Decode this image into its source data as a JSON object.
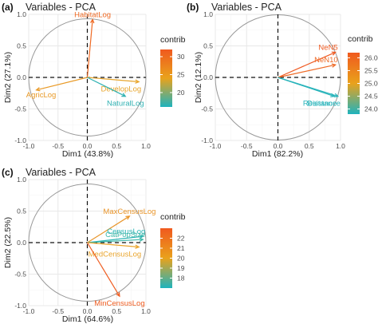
{
  "figure": {
    "colors": {
      "axis_dash": "#111111",
      "circle": "#999999",
      "grid_major": "#e8e8e8",
      "grid_minor": "#f4f4f4",
      "tick_text": "#4d4d4d",
      "text": "#222222"
    }
  },
  "chart_data": [
    {
      "type": "scatter",
      "panel_label": "(a)",
      "title": "Variables - PCA",
      "xlabel": "Dim1 (43.8%)",
      "ylabel": "Dim2 (27.1%)",
      "xlim": [
        -1.0,
        1.0
      ],
      "ylim": [
        -1.0,
        1.0
      ],
      "x_ticks": [
        "-1.0",
        "-0.5",
        "0.0",
        "0.5",
        "1.0"
      ],
      "y_ticks": [
        "-1.0",
        "-0.5",
        "0.0",
        "0.5",
        "1.0"
      ],
      "grid": true,
      "legend": {
        "title": "contrib",
        "min": 16,
        "max": 32,
        "ticks": [
          "30",
          "25",
          "20"
        ],
        "tick_values": [
          30,
          25,
          20
        ],
        "colors": [
          "#1fb3bd",
          "#e9a21c",
          "#f0591e"
        ]
      },
      "series": [
        {
          "name": "HabitatLog",
          "x": 0.09,
          "y": 0.92,
          "color": "#ef6a24"
        },
        {
          "name": "AgricLog",
          "x": -0.87,
          "y": -0.2,
          "color": "#e99a27"
        },
        {
          "name": "DevelopLog",
          "x": 0.88,
          "y": -0.07,
          "color": "#e8a52c"
        },
        {
          "name": "NaturalLog",
          "x": 0.65,
          "y": -0.3,
          "color": "#2fb1b2"
        }
      ]
    },
    {
      "type": "scatter",
      "panel_label": "(b)",
      "title": "Variables - PCA",
      "xlabel": "Dim1 (82.2%)",
      "ylabel": "Dim2 (12.1%)",
      "xlim": [
        -1.0,
        1.0
      ],
      "ylim": [
        -1.0,
        1.0
      ],
      "x_ticks": [
        "-1.0",
        "-0.5",
        "0.0",
        "0.5",
        "1.0"
      ],
      "y_ticks": [
        "-1.0",
        "-0.5",
        "0.0",
        "0.5",
        "1.0"
      ],
      "grid": true,
      "legend": {
        "title": "contrib",
        "min": 23.8,
        "max": 26.2,
        "ticks": [
          "26.00",
          "25.50",
          "25.00",
          "24.50",
          "24.00"
        ],
        "tick_values": [
          26.0,
          25.5,
          25.0,
          24.5,
          24.0
        ],
        "colors": [
          "#1fb3bd",
          "#e9a21c",
          "#f0591e"
        ]
      },
      "series": [
        {
          "name": "NeN5",
          "x": 0.92,
          "y": 0.4,
          "color": "#ef5a22"
        },
        {
          "name": "NeN10",
          "x": 0.92,
          "y": 0.2,
          "color": "#ee6a26"
        },
        {
          "name": "Distance",
          "x": 0.9,
          "y": -0.3,
          "color": "#27b3ba"
        },
        {
          "name": "Resistance",
          "x": 0.96,
          "y": -0.3,
          "color": "#27b3ba"
        }
      ]
    },
    {
      "type": "scatter",
      "panel_label": "(c)",
      "title": "Variables - PCA",
      "xlabel": "Dim1 (64.6%)",
      "ylabel": "Dim2 (22.5%)",
      "xlim": [
        -1.0,
        1.0
      ],
      "ylim": [
        -1.0,
        1.0
      ],
      "x_ticks": [
        "-1.0",
        "-0.5",
        "0.0",
        "0.5",
        "1.0"
      ],
      "y_ticks": [
        "-1.0",
        "-0.5",
        "0.0",
        "0.5",
        "1.0"
      ],
      "grid": true,
      "legend": {
        "title": "contrib",
        "min": 17,
        "max": 23,
        "ticks": [
          "22",
          "21",
          "20",
          "19",
          "18"
        ],
        "tick_values": [
          22,
          21,
          20,
          19,
          18
        ],
        "colors": [
          "#1fb3bd",
          "#e9a21c",
          "#f0591e"
        ]
      },
      "series": [
        {
          "name": "MaxCensusLog",
          "x": 0.72,
          "y": 0.42,
          "color": "#e9952a"
        },
        {
          "name": "CensusLog",
          "x": 0.95,
          "y": 0.1,
          "color": "#2bb4b4"
        },
        {
          "name": "CatPopSize",
          "x": 0.95,
          "y": 0.05,
          "color": "#3fb7a8"
        },
        {
          "name": "MedCensusLog",
          "x": 0.88,
          "y": -0.07,
          "color": "#e9a52d"
        },
        {
          "name": "MinCensusLog",
          "x": 0.55,
          "y": -0.85,
          "color": "#ef5e22"
        }
      ]
    }
  ]
}
